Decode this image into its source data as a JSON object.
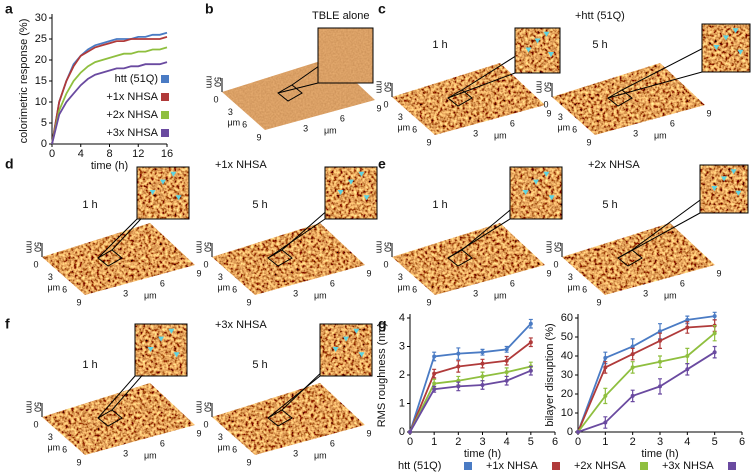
{
  "chart_data": [
    {
      "type": "line",
      "xlabel": "time (h)",
      "ylabel": "colorimetric response (%)",
      "x": [
        0,
        1,
        2,
        3,
        4,
        5,
        6,
        7,
        8,
        9,
        10,
        11,
        12,
        13,
        14,
        15,
        16
      ],
      "xlim": [
        0,
        16
      ],
      "xticks": [
        0,
        4,
        8,
        12,
        16
      ],
      "ylim": [
        0,
        30
      ],
      "yticks": [
        0,
        5,
        10,
        15,
        20,
        25,
        30
      ],
      "legend": "right",
      "series": [
        {
          "name": "htt (51Q)",
          "color": "#4a7bc4",
          "values": [
            0,
            10,
            15,
            19,
            21,
            22.5,
            23.5,
            24,
            24.5,
            25,
            25,
            25,
            25.5,
            25.5,
            26,
            26,
            26.5
          ]
        },
        {
          "name": "+1x NHSA",
          "color": "#b03a3a",
          "values": [
            0,
            10,
            15,
            18.5,
            21,
            22,
            23,
            23.5,
            24,
            24.5,
            24.5,
            25,
            25,
            25,
            25,
            25,
            25.5
          ]
        },
        {
          "name": "+2x NHSA",
          "color": "#8fbf3f",
          "values": [
            0,
            8,
            12,
            15,
            17,
            18.5,
            19.5,
            20,
            20.5,
            21,
            21.5,
            21.5,
            22,
            22,
            22.5,
            22.5,
            23
          ]
        },
        {
          "name": "+3x NHSA",
          "color": "#6a4aa0",
          "values": [
            0,
            7,
            10,
            12,
            14,
            15.5,
            16.5,
            17,
            17.5,
            18,
            18,
            18.5,
            18.5,
            19,
            19,
            19,
            19.5
          ]
        }
      ]
    },
    {
      "type": "line",
      "xlabel": "time (h)",
      "ylabel": "RMS roughness (nm)",
      "x": [
        0,
        1,
        2,
        3,
        4,
        5
      ],
      "xlim": [
        0,
        6
      ],
      "xticks": [
        0,
        1,
        2,
        3,
        4,
        5,
        6
      ],
      "ylim": [
        0,
        4
      ],
      "yticks": [
        0,
        1,
        2,
        3,
        4
      ],
      "series": [
        {
          "name": "htt (51Q)",
          "color": "#4a7bc4",
          "values": [
            0,
            2.65,
            2.75,
            2.8,
            2.9,
            3.8
          ],
          "errors": [
            0,
            0.15,
            0.2,
            0.1,
            0.1,
            0.15
          ]
        },
        {
          "name": "+1x NHSA",
          "color": "#b03a3a",
          "values": [
            0,
            2.05,
            2.3,
            2.4,
            2.5,
            3.15
          ],
          "errors": [
            0,
            0.15,
            0.2,
            0.15,
            0.15,
            0.15
          ]
        },
        {
          "name": "+2x NHSA",
          "color": "#8fbf3f",
          "values": [
            0,
            1.7,
            1.8,
            1.95,
            2.1,
            2.3
          ],
          "errors": [
            0,
            0.15,
            0.15,
            0.15,
            0.15,
            0.15
          ]
        },
        {
          "name": "+3x NHSA",
          "color": "#6a4aa0",
          "values": [
            0,
            1.5,
            1.6,
            1.65,
            1.8,
            2.15
          ],
          "errors": [
            0,
            0.1,
            0.15,
            0.15,
            0.15,
            0.15
          ]
        }
      ]
    },
    {
      "type": "line",
      "xlabel": "time (h)",
      "ylabel": "bilayer disruption (%)",
      "x": [
        0,
        1,
        2,
        3,
        4,
        5
      ],
      "xlim": [
        0,
        6
      ],
      "xticks": [
        0,
        1,
        2,
        3,
        4,
        5,
        6
      ],
      "ylim": [
        0,
        60
      ],
      "yticks": [
        0,
        10,
        20,
        30,
        40,
        50,
        60
      ],
      "series": [
        {
          "color": "#4a7bc4",
          "values": [
            0,
            39,
            45,
            53,
            59,
            61
          ],
          "errors": [
            0,
            3,
            4,
            4,
            2,
            2
          ]
        },
        {
          "color": "#b03a3a",
          "values": [
            0,
            34,
            41,
            48,
            55,
            56
          ],
          "errors": [
            0,
            3,
            3,
            4,
            3,
            3
          ]
        },
        {
          "color": "#8fbf3f",
          "values": [
            0,
            19,
            34,
            37,
            40,
            52
          ],
          "errors": [
            0,
            4,
            3,
            3,
            4,
            4
          ]
        },
        {
          "color": "#6a4aa0",
          "values": [
            0,
            5,
            19,
            24,
            33,
            42
          ],
          "errors": [
            0,
            3,
            3,
            4,
            3,
            3
          ]
        }
      ]
    }
  ],
  "afm_axis": {
    "z_unit": "nm",
    "z_max": "50",
    "ticks": [
      "0",
      "3",
      "6",
      "9"
    ],
    "unit": "μm"
  },
  "panels": [
    {
      "label": "a"
    },
    {
      "label": "b",
      "title": "TBLE alone"
    },
    {
      "label": "c",
      "title": "+htt (51Q)",
      "times": [
        "1 h",
        "5 h"
      ]
    },
    {
      "label": "d",
      "title": "+1x NHSA",
      "times": [
        "1 h",
        "5 h"
      ]
    },
    {
      "label": "e",
      "title": "+2x NHSA",
      "times": [
        "1 h",
        "5 h"
      ]
    },
    {
      "label": "f",
      "title": "+3x NHSA",
      "times": [
        "1 h",
        "5 h"
      ]
    },
    {
      "label": "g"
    }
  ]
}
